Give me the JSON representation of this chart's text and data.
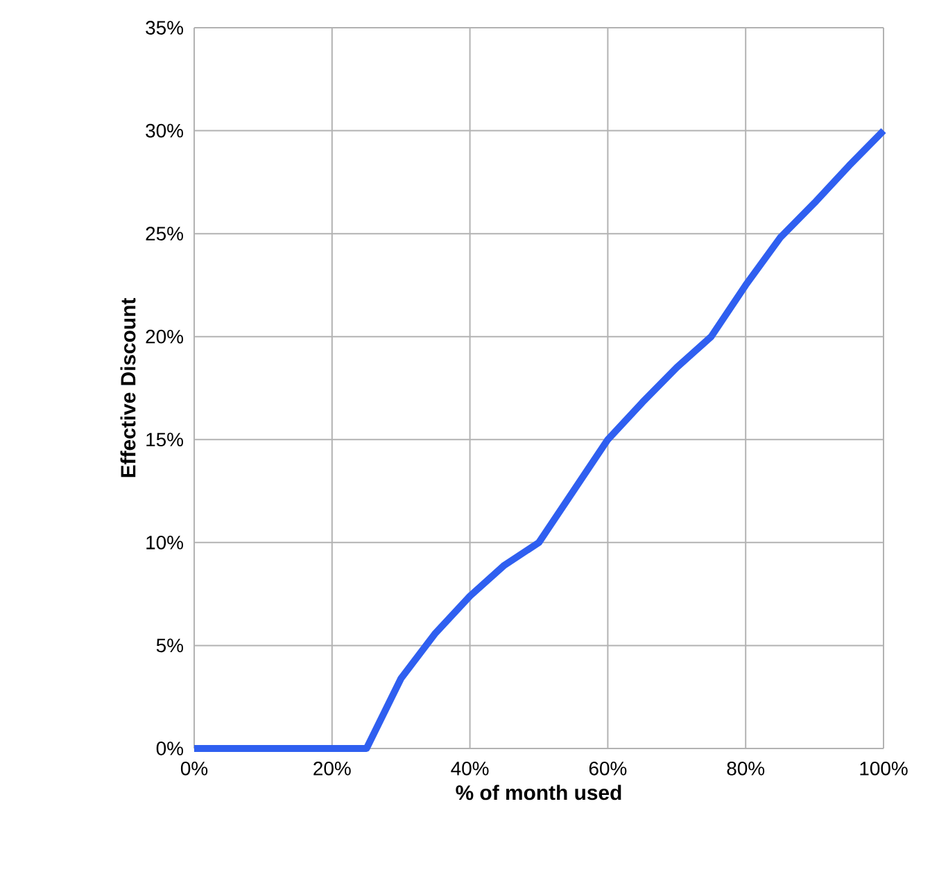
{
  "chart_data": {
    "type": "line",
    "xlabel": "% of month used",
    "ylabel": "Effective Discount",
    "x": [
      0,
      25,
      30,
      35,
      40,
      45,
      50,
      55,
      60,
      65,
      70,
      75,
      80,
      85,
      90,
      95,
      100
    ],
    "series": [
      {
        "color": "#2f5ff0",
        "values": [
          0,
          0,
          3.4,
          5.6,
          7.4,
          8.9,
          10,
          12.5,
          15,
          16.8,
          18.5,
          20,
          22.5,
          24.8,
          26.5,
          28.3,
          30
        ]
      }
    ],
    "xlim": [
      0,
      100
    ],
    "ylim": [
      0,
      35
    ],
    "xticks": [
      {
        "value": 0,
        "label": "0%"
      },
      {
        "value": 20,
        "label": "20%"
      },
      {
        "value": 40,
        "label": "40%"
      },
      {
        "value": 60,
        "label": "60%"
      },
      {
        "value": 80,
        "label": "80%"
      },
      {
        "value": 100,
        "label": "100%"
      }
    ],
    "yticks": [
      {
        "value": 0,
        "label": "0%"
      },
      {
        "value": 5,
        "label": "5%"
      },
      {
        "value": 10,
        "label": "10%"
      },
      {
        "value": 15,
        "label": "15%"
      },
      {
        "value": 20,
        "label": "20%"
      },
      {
        "value": 25,
        "label": "25%"
      },
      {
        "value": 30,
        "label": "30%"
      },
      {
        "value": 35,
        "label": "35%"
      }
    ],
    "grid": true,
    "marker": "none",
    "line_style": "solid"
  }
}
